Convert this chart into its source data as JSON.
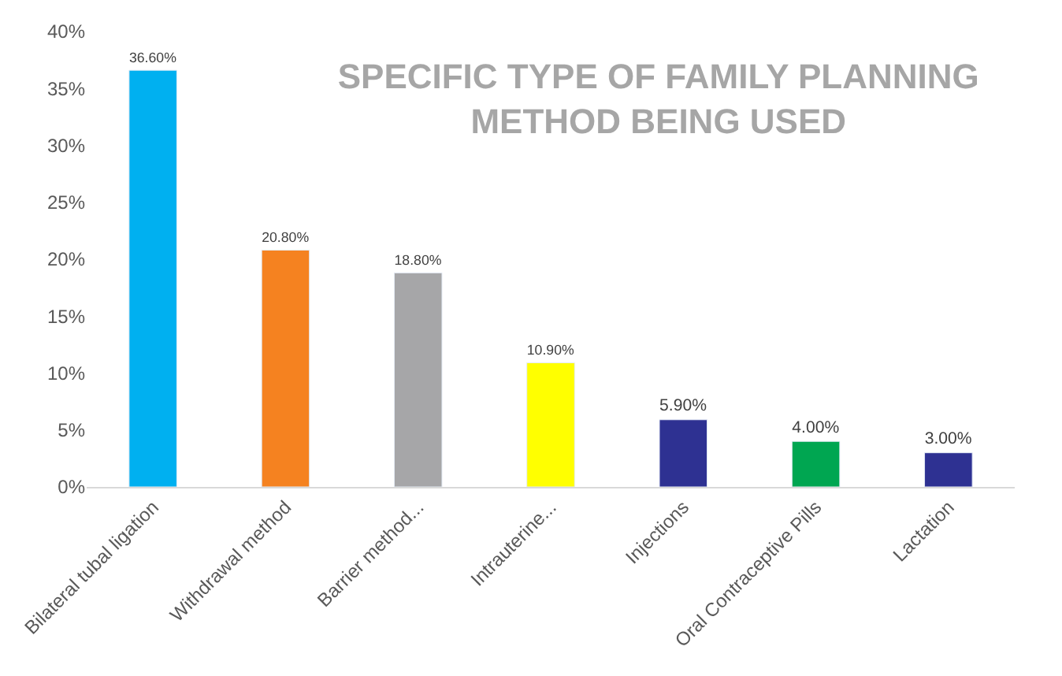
{
  "chart_data": {
    "type": "bar",
    "title": "SPECIFIC TYPE OF FAMILY PLANNING\nMETHOD BEING USED",
    "categories": [
      "Bilateral tubal ligation",
      "Withdrawal method",
      "Barrier method...",
      "Intrauterine...",
      "Injections",
      "Oral Contraceptive Pills",
      "Lactation"
    ],
    "values": [
      36.6,
      20.8,
      18.8,
      10.9,
      5.9,
      4.0,
      3.0
    ],
    "colors": [
      "#00b0f0",
      "#f58220",
      "#a6a6a8",
      "#ffff00",
      "#2e3192",
      "#00a651",
      "#2e3192"
    ],
    "value_labels": [
      "36.60%",
      "20.80%",
      "18.80%",
      "10.90%",
      "5.90%",
      "4.00%",
      "3.00%"
    ],
    "ylim": [
      0,
      40
    ],
    "yticks": [
      {
        "value": 0,
        "label": "0%"
      },
      {
        "value": 5,
        "label": "5%"
      },
      {
        "value": 10,
        "label": "10%"
      },
      {
        "value": 15,
        "label": "15%"
      },
      {
        "value": 20,
        "label": "20%"
      },
      {
        "value": 25,
        "label": "25%"
      },
      {
        "value": 30,
        "label": "30%"
      },
      {
        "value": 35,
        "label": "35%"
      },
      {
        "value": 40,
        "label": "40%"
      }
    ],
    "legend": false
  }
}
